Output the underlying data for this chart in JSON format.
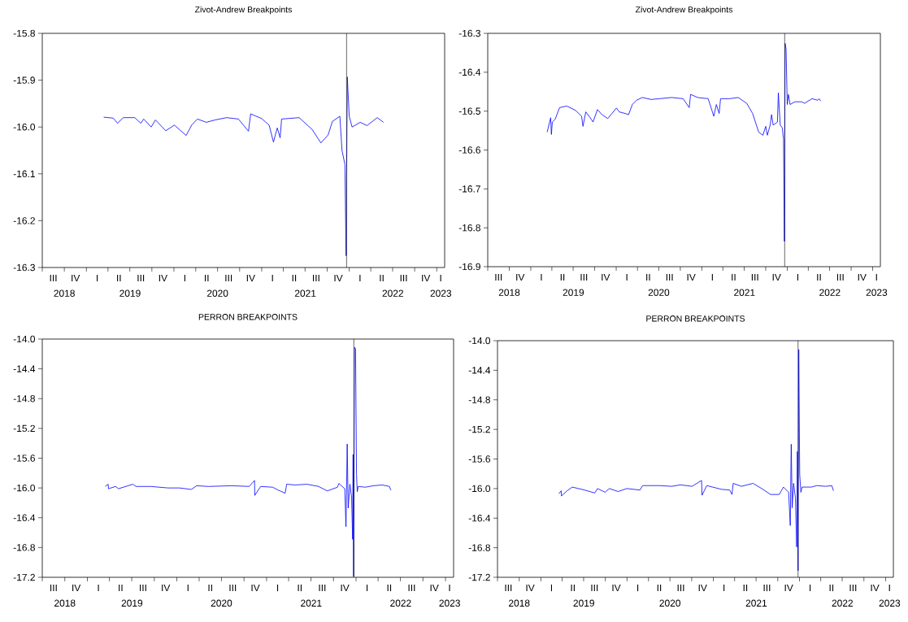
{
  "chart_data": [
    {
      "type": "line",
      "title": "Zivot-Andrew Breakpoints",
      "color": "#0000ff",
      "x": [
        "2019-03-14",
        "2019-04-23",
        "2019-05-11",
        "2019-06-04",
        "2019-07-22",
        "2019-08-16",
        "2019-08-28",
        "2019-09-28",
        "2019-10-16",
        "2019-11-28",
        "2020-01-03",
        "2020-02-21",
        "2020-03-15",
        "2020-04-08",
        "2020-05-15",
        "2020-06-20",
        "2020-08-08",
        "2020-09-26",
        "2020-11-07",
        "2020-11-16",
        "2021-01-01",
        "2021-02-01",
        "2021-02-19",
        "2021-03-07",
        "2021-03-19",
        "2021-03-25",
        "2021-06-06",
        "2021-07-30",
        "2021-09-05",
        "2021-10-05",
        "2021-10-23",
        "2021-11-23",
        "2021-12-02",
        "2021-12-14",
        "2021-12-19",
        "2021-12-24",
        "2022-01-01",
        "2022-01-13",
        "2022-02-16",
        "2022-03-16",
        "2022-04-28",
        "2022-05-24"
      ],
      "values": [
        -15.979,
        -15.981,
        -15.992,
        -15.98,
        -15.98,
        -15.992,
        -15.983,
        -16.0,
        -15.985,
        -16.008,
        -15.996,
        -16.018,
        -15.996,
        -15.983,
        -15.99,
        -15.985,
        -15.98,
        -15.983,
        -16.009,
        -15.972,
        -15.982,
        -15.996,
        -16.032,
        -16.002,
        -16.023,
        -15.983,
        -15.98,
        -16.005,
        -16.034,
        -16.017,
        -15.988,
        -15.977,
        -16.05,
        -16.08,
        -16.275,
        -15.893,
        -15.977,
        -16.0,
        -15.99,
        -15.997,
        -15.98,
        -15.99
      ],
      "xlim": [
        "2018-07-01",
        "2023-02-03"
      ],
      "ylim": [
        -16.3,
        -15.8
      ],
      "yticks": [
        {
          "value": -16.3,
          "label": "-16.3"
        },
        {
          "value": -16.2,
          "label": "-16.2"
        },
        {
          "value": -16.1,
          "label": "-16.1"
        },
        {
          "value": -16.0,
          "label": "-16.0"
        },
        {
          "value": -15.9,
          "label": "-15.9"
        },
        {
          "value": -15.8,
          "label": "-15.8"
        }
      ],
      "xticks": [
        {
          "value": "2018-07-01",
          "label": null
        },
        {
          "value": "2018-10-01",
          "label": null
        },
        {
          "value": "2019-01-01",
          "label": null
        },
        {
          "value": "2019-04-01",
          "label": null
        },
        {
          "value": "2019-07-01",
          "label": null
        },
        {
          "value": "2019-10-01",
          "label": null
        },
        {
          "value": "2020-01-01",
          "label": null
        },
        {
          "value": "2020-04-01",
          "label": null
        },
        {
          "value": "2020-07-01",
          "label": null
        },
        {
          "value": "2020-10-01",
          "label": null
        },
        {
          "value": "2021-01-01",
          "label": null
        },
        {
          "value": "2021-04-01",
          "label": null
        },
        {
          "value": "2021-07-01",
          "label": null
        },
        {
          "value": "2021-10-01",
          "label": null
        },
        {
          "value": "2022-01-01",
          "label": null
        },
        {
          "value": "2022-04-01",
          "label": null
        },
        {
          "value": "2022-07-01",
          "label": null
        },
        {
          "value": "2022-10-01",
          "label": null
        },
        {
          "value": "2023-01-01",
          "label": null
        },
        {
          "value": "2018-10-01",
          "label": "2018"
        },
        {
          "value": "2019-07-02",
          "label": "2019"
        },
        {
          "value": "2020-07-01",
          "label": "2020"
        },
        {
          "value": "2021-07-02",
          "label": "2021"
        },
        {
          "value": "2022-07-02",
          "label": "2022"
        },
        {
          "value": "2023-01-18",
          "label": "2023"
        }
      ],
      "annotations": [
        "III",
        "IV",
        "I",
        "II",
        "III",
        "IV",
        "I",
        "II",
        "III",
        "IV",
        "I",
        "II",
        "III",
        "IV",
        "I",
        "II",
        "III",
        "IV",
        "I"
      ],
      "ref_lines": [
        {
          "axis": "x",
          "value": "2021-12-21",
          "color": "#000000"
        }
      ]
    },
    {
      "type": "line",
      "title": "Zivot-Andrew Breakpoints",
      "color": "#0000ff",
      "x": [
        "2019-03-12",
        "2019-03-27",
        "2019-03-30",
        "2019-04-03",
        "2019-04-15",
        "2019-05-04",
        "2019-06-04",
        "2019-07-11",
        "2019-08-06",
        "2019-08-12",
        "2019-08-24",
        "2019-09-12",
        "2019-09-24",
        "2019-10-13",
        "2019-11-01",
        "2019-11-26",
        "2020-01-02",
        "2020-01-14",
        "2020-02-08",
        "2020-02-23",
        "2020-03-10",
        "2020-03-28",
        "2020-04-22",
        "2020-05-29",
        "2020-07-05",
        "2020-08-25",
        "2020-10-13",
        "2020-11-08",
        "2020-11-14",
        "2020-12-14",
        "2021-01-28",
        "2021-02-21",
        "2021-03-04",
        "2021-03-16",
        "2021-03-22",
        "2021-04-29",
        "2021-06-05",
        "2021-07-12",
        "2021-08-06",
        "2021-09-01",
        "2021-09-19",
        "2021-10-01",
        "2021-10-08",
        "2021-10-20",
        "2021-10-26",
        "2021-11-02",
        "2021-11-20",
        "2021-11-24",
        "2021-12-02",
        "2021-12-11",
        "2021-12-16",
        "2021-12-20",
        "2021-12-23",
        "2021-12-27",
        "2022-01-01",
        "2022-01-06",
        "2022-01-13",
        "2022-02-03",
        "2022-03-04",
        "2022-03-16",
        "2022-04-17",
        "2022-05-11",
        "2022-05-17",
        "2022-05-24"
      ],
      "values": [
        -16.554,
        -16.517,
        -16.56,
        -16.528,
        -16.521,
        -16.491,
        -16.487,
        -16.498,
        -16.513,
        -16.539,
        -16.502,
        -16.517,
        -16.528,
        -16.496,
        -16.509,
        -16.519,
        -16.492,
        -16.502,
        -16.506,
        -16.509,
        -16.483,
        -16.472,
        -16.465,
        -16.47,
        -16.468,
        -16.465,
        -16.468,
        -16.491,
        -16.457,
        -16.465,
        -16.468,
        -16.513,
        -16.483,
        -16.506,
        -16.468,
        -16.468,
        -16.465,
        -16.48,
        -16.506,
        -16.554,
        -16.562,
        -16.539,
        -16.562,
        -16.536,
        -16.509,
        -16.536,
        -16.528,
        -16.453,
        -16.536,
        -16.543,
        -16.573,
        -16.835,
        -16.326,
        -16.341,
        -16.483,
        -16.457,
        -16.483,
        -16.476,
        -16.476,
        -16.48,
        -16.468,
        -16.472,
        -16.468,
        -16.474
      ],
      "xlim": [
        "2018-07-01",
        "2023-02-03"
      ],
      "ylim": [
        -16.9,
        -16.3
      ],
      "yticks": [
        {
          "value": -16.9,
          "label": "-16.9"
        },
        {
          "value": -16.8,
          "label": "-16.8"
        },
        {
          "value": -16.7,
          "label": "-16.7"
        },
        {
          "value": -16.6,
          "label": "-16.6"
        },
        {
          "value": -16.5,
          "label": "-16.5"
        },
        {
          "value": -16.4,
          "label": "-16.4"
        },
        {
          "value": -16.3,
          "label": "-16.3"
        }
      ],
      "xticks": [
        {
          "value": "2018-07-01",
          "label": null
        },
        {
          "value": "2018-10-01",
          "label": null
        },
        {
          "value": "2019-01-01",
          "label": null
        },
        {
          "value": "2019-04-01",
          "label": null
        },
        {
          "value": "2019-07-01",
          "label": null
        },
        {
          "value": "2019-10-01",
          "label": null
        },
        {
          "value": "2020-01-01",
          "label": null
        },
        {
          "value": "2020-04-01",
          "label": null
        },
        {
          "value": "2020-07-01",
          "label": null
        },
        {
          "value": "2020-10-01",
          "label": null
        },
        {
          "value": "2021-01-01",
          "label": null
        },
        {
          "value": "2021-04-01",
          "label": null
        },
        {
          "value": "2021-07-01",
          "label": null
        },
        {
          "value": "2021-10-01",
          "label": null
        },
        {
          "value": "2022-01-01",
          "label": null
        },
        {
          "value": "2022-04-01",
          "label": null
        },
        {
          "value": "2022-07-01",
          "label": null
        },
        {
          "value": "2022-10-01",
          "label": null
        },
        {
          "value": "2023-01-01",
          "label": null
        },
        {
          "value": "2018-10-01",
          "label": "2018"
        },
        {
          "value": "2019-07-02",
          "label": "2019"
        },
        {
          "value": "2020-07-01",
          "label": "2020"
        },
        {
          "value": "2021-07-02",
          "label": "2021"
        },
        {
          "value": "2022-07-02",
          "label": "2022"
        },
        {
          "value": "2023-01-18",
          "label": "2023"
        }
      ],
      "annotations": [
        "III",
        "IV",
        "I",
        "II",
        "III",
        "IV",
        "I",
        "II",
        "III",
        "IV",
        "I",
        "II",
        "III",
        "IV",
        "I",
        "II",
        "III",
        "IV",
        "I"
      ],
      "ref_lines": [
        {
          "axis": "x",
          "value": "2021-12-21",
          "color": "#000000"
        }
      ]
    },
    {
      "type": "line",
      "title": "PERRON BREAKPOINTS",
      "color": "#0000ff",
      "x": [
        "2019-03-15",
        "2019-03-27",
        "2019-03-28",
        "2019-04-26",
        "2019-05-08",
        "2019-07-06",
        "2019-07-18",
        "2019-09-16",
        "2019-11-26",
        "2020-01-12",
        "2020-02-29",
        "2020-03-22",
        "2020-05-09",
        "2020-08-12",
        "2020-10-22",
        "2020-11-13",
        "2020-11-14",
        "2020-12-08",
        "2021-01-26",
        "2021-02-18",
        "2021-03-18",
        "2021-03-24",
        "2021-04-28",
        "2021-06-15",
        "2021-08-01",
        "2021-09-06",
        "2021-10-17",
        "2021-10-23",
        "2021-11-16",
        "2021-11-21",
        "2021-11-26",
        "2021-11-30",
        "2021-12-07",
        "2021-12-14",
        "2021-12-18",
        "2021-12-20",
        "2021-12-22",
        "2021-12-26",
        "2021-12-30",
        "2022-01-03",
        "2022-01-06",
        "2022-01-10",
        "2022-02-08",
        "2022-03-13",
        "2022-04-18",
        "2022-05-17",
        "2022-05-23"
      ],
      "values": [
        -15.98,
        -15.95,
        -16.01,
        -15.98,
        -16.01,
        -15.95,
        -15.98,
        -15.98,
        -16.0,
        -16.0,
        -16.02,
        -15.97,
        -15.98,
        -15.97,
        -15.98,
        -15.9,
        -16.1,
        -15.98,
        -15.99,
        -16.03,
        -16.07,
        -15.95,
        -15.96,
        -15.95,
        -15.98,
        -16.04,
        -15.99,
        -15.94,
        -16.01,
        -16.52,
        -15.41,
        -16.27,
        -15.95,
        -16.13,
        -16.69,
        -15.55,
        -17.19,
        -14.11,
        -14.13,
        -15.82,
        -16.05,
        -15.98,
        -15.99,
        -15.97,
        -15.96,
        -15.98,
        -16.03
      ],
      "xlim": [
        "2018-07-01",
        "2023-02-03"
      ],
      "ylim": [
        -17.2,
        -14.0
      ],
      "yticks": [
        {
          "value": -17.2,
          "label": "-17.2"
        },
        {
          "value": -16.8,
          "label": "-16.8"
        },
        {
          "value": -16.4,
          "label": "-16.4"
        },
        {
          "value": -16.0,
          "label": "-16.0"
        },
        {
          "value": -15.6,
          "label": "-15.6"
        },
        {
          "value": -15.2,
          "label": "-15.2"
        },
        {
          "value": -14.8,
          "label": "-14.8"
        },
        {
          "value": -14.4,
          "label": "-14.4"
        },
        {
          "value": -14.0,
          "label": "-14.0"
        }
      ],
      "xticks": [
        {
          "value": "2018-07-01",
          "label": null
        },
        {
          "value": "2018-10-01",
          "label": null
        },
        {
          "value": "2019-01-01",
          "label": null
        },
        {
          "value": "2019-04-01",
          "label": null
        },
        {
          "value": "2019-07-01",
          "label": null
        },
        {
          "value": "2019-10-01",
          "label": null
        },
        {
          "value": "2020-01-01",
          "label": null
        },
        {
          "value": "2020-04-01",
          "label": null
        },
        {
          "value": "2020-07-01",
          "label": null
        },
        {
          "value": "2020-10-01",
          "label": null
        },
        {
          "value": "2021-01-01",
          "label": null
        },
        {
          "value": "2021-04-01",
          "label": null
        },
        {
          "value": "2021-07-01",
          "label": null
        },
        {
          "value": "2021-10-01",
          "label": null
        },
        {
          "value": "2022-01-01",
          "label": null
        },
        {
          "value": "2022-04-01",
          "label": null
        },
        {
          "value": "2022-07-01",
          "label": null
        },
        {
          "value": "2022-10-01",
          "label": null
        },
        {
          "value": "2023-01-01",
          "label": null
        },
        {
          "value": "2018-10-01",
          "label": "2018"
        },
        {
          "value": "2019-07-02",
          "label": "2019"
        },
        {
          "value": "2020-07-01",
          "label": "2020"
        },
        {
          "value": "2021-07-02",
          "label": "2021"
        },
        {
          "value": "2022-07-02",
          "label": "2022"
        },
        {
          "value": "2023-01-18",
          "label": "2023"
        }
      ],
      "annotations": [
        "III",
        "IV",
        "I",
        "II",
        "III",
        "IV",
        "I",
        "II",
        "III",
        "IV",
        "I",
        "II",
        "III",
        "IV",
        "I",
        "II",
        "III",
        "IV",
        "I"
      ],
      "ref_lines": [
        {
          "axis": "x",
          "value": "2021-12-23",
          "color": "#000000"
        }
      ]
    },
    {
      "type": "line",
      "title": "PERRON BREAKPOINTS",
      "color": "#0000ff",
      "x": [
        "2019-03-18",
        "2019-03-28",
        "2019-03-29",
        "2019-04-22",
        "2019-05-14",
        "2019-07-05",
        "2019-08-17",
        "2019-08-29",
        "2019-09-30",
        "2019-10-18",
        "2019-11-24",
        "2019-12-31",
        "2020-02-25",
        "2020-03-07",
        "2020-04-13",
        "2020-05-20",
        "2020-07-08",
        "2020-08-15",
        "2020-10-03",
        "2020-11-12",
        "2020-11-14",
        "2020-12-04",
        "2021-02-04",
        "2021-03-11",
        "2021-03-21",
        "2021-03-26",
        "2021-04-30",
        "2021-06-18",
        "2021-07-25",
        "2021-08-31",
        "2021-10-07",
        "2021-10-25",
        "2021-11-16",
        "2021-11-23",
        "2021-11-27",
        "2021-12-01",
        "2021-12-07",
        "2021-12-15",
        "2021-12-20",
        "2021-12-23",
        "2021-12-26",
        "2021-12-29",
        "2022-01-02",
        "2022-01-07",
        "2022-01-12",
        "2022-02-21",
        "2022-03-15",
        "2022-04-21",
        "2022-05-18",
        "2022-05-25"
      ],
      "values": [
        -16.07,
        -16.03,
        -16.1,
        -16.03,
        -15.98,
        -16.02,
        -16.06,
        -16.0,
        -16.05,
        -16.0,
        -16.04,
        -16.0,
        -16.02,
        -15.96,
        -15.96,
        -15.96,
        -15.97,
        -15.95,
        -15.97,
        -15.89,
        -16.09,
        -15.96,
        -16.01,
        -16.02,
        -16.08,
        -15.93,
        -15.97,
        -15.93,
        -16.0,
        -16.08,
        -16.08,
        -15.98,
        -16.05,
        -16.5,
        -15.4,
        -16.26,
        -15.93,
        -16.13,
        -16.79,
        -15.5,
        -17.11,
        -14.12,
        -15.81,
        -16.05,
        -15.98,
        -15.98,
        -15.96,
        -15.97,
        -15.96,
        -16.03
      ],
      "xlim": [
        "2018-07-01",
        "2023-02-03"
      ],
      "ylim": [
        -17.2,
        -14.0
      ],
      "yticks": [
        {
          "value": -17.2,
          "label": "-17.2"
        },
        {
          "value": -16.8,
          "label": "-16.8"
        },
        {
          "value": -16.4,
          "label": "-16.4"
        },
        {
          "value": -16.0,
          "label": "-16.0"
        },
        {
          "value": -15.6,
          "label": "-15.6"
        },
        {
          "value": -15.2,
          "label": "-15.2"
        },
        {
          "value": -14.8,
          "label": "-14.8"
        },
        {
          "value": -14.4,
          "label": "-14.4"
        },
        {
          "value": -14.0,
          "label": "-14.0"
        }
      ],
      "xticks": [
        {
          "value": "2018-07-01",
          "label": null
        },
        {
          "value": "2018-10-01",
          "label": null
        },
        {
          "value": "2019-01-01",
          "label": null
        },
        {
          "value": "2019-04-01",
          "label": null
        },
        {
          "value": "2019-07-01",
          "label": null
        },
        {
          "value": "2019-10-01",
          "label": null
        },
        {
          "value": "2020-01-01",
          "label": null
        },
        {
          "value": "2020-04-01",
          "label": null
        },
        {
          "value": "2020-07-01",
          "label": null
        },
        {
          "value": "2020-10-01",
          "label": null
        },
        {
          "value": "2021-01-01",
          "label": null
        },
        {
          "value": "2021-04-01",
          "label": null
        },
        {
          "value": "2021-07-01",
          "label": null
        },
        {
          "value": "2021-10-01",
          "label": null
        },
        {
          "value": "2022-01-01",
          "label": null
        },
        {
          "value": "2022-04-01",
          "label": null
        },
        {
          "value": "2022-07-01",
          "label": null
        },
        {
          "value": "2022-10-01",
          "label": null
        },
        {
          "value": "2023-01-01",
          "label": null
        },
        {
          "value": "2018-10-01",
          "label": "2018"
        },
        {
          "value": "2019-07-02",
          "label": "2019"
        },
        {
          "value": "2020-07-01",
          "label": "2020"
        },
        {
          "value": "2021-07-02",
          "label": "2021"
        },
        {
          "value": "2022-07-02",
          "label": "2022"
        },
        {
          "value": "2023-01-18",
          "label": "2023"
        }
      ],
      "annotations": [
        "III",
        "IV",
        "I",
        "II",
        "III",
        "IV",
        "I",
        "II",
        "III",
        "IV",
        "I",
        "II",
        "III",
        "IV",
        "I",
        "II",
        "III",
        "IV",
        "I"
      ],
      "ref_lines": [
        {
          "axis": "x",
          "value": "2021-12-26",
          "color": "#000000"
        }
      ]
    }
  ]
}
